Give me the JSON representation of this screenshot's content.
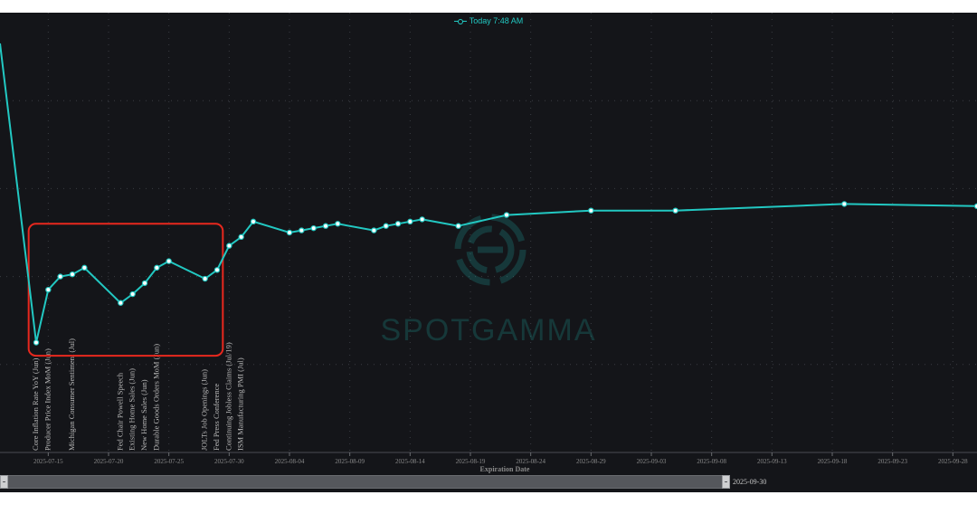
{
  "legend": {
    "label": "Today 7:48 AM",
    "color": "#22c8c2"
  },
  "watermark": {
    "text": "SPOTGAMMA"
  },
  "scroll": {
    "range_end_label": "2025-09-30"
  },
  "colors": {
    "background": "#141519",
    "line": "#22c8c2",
    "highlight_box": "#e8281e",
    "tick_text": "#8a8a8a",
    "event_text": "#b8b8b8"
  },
  "chart_data": {
    "type": "line",
    "series": [
      {
        "name": "Today 7:48 AM",
        "points": [
          {
            "x": "2025-07-11",
            "y": 93.0
          },
          {
            "x": "2025-07-14",
            "y": 25.0
          },
          {
            "x": "2025-07-15",
            "y": 37.0
          },
          {
            "x": "2025-07-16",
            "y": 40.0
          },
          {
            "x": "2025-07-17",
            "y": 40.5
          },
          {
            "x": "2025-07-18",
            "y": 42.0
          },
          {
            "x": "2025-07-21",
            "y": 34.0
          },
          {
            "x": "2025-07-22",
            "y": 36.0
          },
          {
            "x": "2025-07-23",
            "y": 38.5
          },
          {
            "x": "2025-07-24",
            "y": 42.0
          },
          {
            "x": "2025-07-25",
            "y": 43.5
          },
          {
            "x": "2025-07-28",
            "y": 39.5
          },
          {
            "x": "2025-07-29",
            "y": 41.5
          },
          {
            "x": "2025-07-30",
            "y": 47.0
          },
          {
            "x": "2025-07-31",
            "y": 49.0
          },
          {
            "x": "2025-08-01",
            "y": 52.5
          },
          {
            "x": "2025-08-04",
            "y": 50.0
          },
          {
            "x": "2025-08-05",
            "y": 50.5
          },
          {
            "x": "2025-08-06",
            "y": 51.0
          },
          {
            "x": "2025-08-07",
            "y": 51.5
          },
          {
            "x": "2025-08-08",
            "y": 52.0
          },
          {
            "x": "2025-08-11",
            "y": 50.5
          },
          {
            "x": "2025-08-12",
            "y": 51.5
          },
          {
            "x": "2025-08-13",
            "y": 52.0
          },
          {
            "x": "2025-08-14",
            "y": 52.5
          },
          {
            "x": "2025-08-15",
            "y": 53.0
          },
          {
            "x": "2025-08-18",
            "y": 51.5
          },
          {
            "x": "2025-08-22",
            "y": 54.0
          },
          {
            "x": "2025-08-29",
            "y": 55.0
          },
          {
            "x": "2025-09-05",
            "y": 55.0
          },
          {
            "x": "2025-09-19",
            "y": 56.5
          },
          {
            "x": "2025-09-30",
            "y": 56.0
          }
        ]
      }
    ],
    "x_ticks": [
      "2025-07-15",
      "2025-07-20",
      "2025-07-25",
      "2025-07-30",
      "2025-08-04",
      "2025-08-09",
      "2025-08-14",
      "2025-08-19",
      "2025-08-24",
      "2025-08-29",
      "2025-09-03",
      "2025-09-08",
      "2025-09-13",
      "2025-09-18",
      "2025-09-23",
      "2025-09-28"
    ],
    "xlabel": "Expiration Date",
    "xlim": [
      "2025-07-11",
      "2025-09-30"
    ],
    "ylim": [
      0,
      100
    ],
    "grid": true,
    "events": [
      {
        "x": "2025-07-14",
        "label": "Core Inflation Rate YoY (Jun)"
      },
      {
        "x": "2025-07-15",
        "label": "Producer Price Index MoM (Jun)"
      },
      {
        "x": "2025-07-17",
        "label": "Michigan Consumer Sentiment (Jul)"
      },
      {
        "x": "2025-07-21",
        "label": "Fed Chair Powell Speech"
      },
      {
        "x": "2025-07-22",
        "label": "Existing Home Sales (Jun)"
      },
      {
        "x": "2025-07-23",
        "label": "New Home Sales (Jun)"
      },
      {
        "x": "2025-07-24",
        "label": "Durable Goods Orders MoM (Jun)"
      },
      {
        "x": "2025-07-28",
        "label": "JOLTs Job Openings (Jun)"
      },
      {
        "x": "2025-07-29",
        "label": "Fed Press Conference"
      },
      {
        "x": "2025-07-30",
        "label": "Continuing Jobless Claims (Jul/19)"
      },
      {
        "x": "2025-07-31",
        "label": "ISM Manufacturing PMI (Jul)"
      }
    ],
    "highlight": {
      "x_from": "2025-07-13",
      "x_to": "2025-07-30",
      "y_from": 22,
      "y_to": 52
    }
  }
}
